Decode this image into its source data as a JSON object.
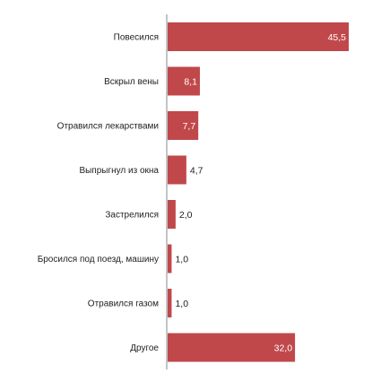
{
  "chart_data": {
    "type": "bar",
    "orientation": "horizontal",
    "categories": [
      "Повесился",
      "Вскрыл вены",
      "Отравился лекарствами",
      "Выпрыгнул из окна",
      "Застрелился",
      "Бросился под поезд, машину",
      "Отравился газом",
      "Другое"
    ],
    "values": [
      45.5,
      8.1,
      7.7,
      4.7,
      2.0,
      1.0,
      1.0,
      32.0
    ],
    "value_labels": [
      "45,5",
      "8,1",
      "7,7",
      "4,7",
      "2,0",
      "1,0",
      "1,0",
      "32,0"
    ],
    "xlim": [
      0,
      45.5
    ],
    "title": "",
    "xlabel": "",
    "ylabel": "",
    "grid": false,
    "legend": "none",
    "colors": {
      "bar": "#c0484b",
      "label_inside": "#ffffff",
      "label_outside": "#222222",
      "axis": "#888888"
    }
  }
}
